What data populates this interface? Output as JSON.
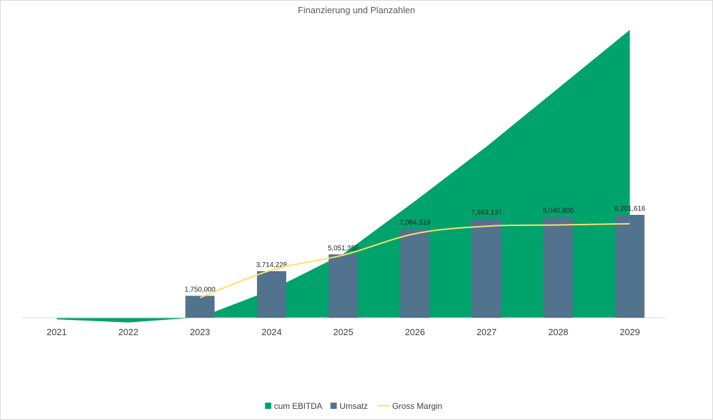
{
  "chart_data": {
    "type": "bar",
    "title": "Finanzierung und Planzahlen",
    "xlabel": "",
    "ylabel": "",
    "categories": [
      "2021",
      "2022",
      "2023",
      "2024",
      "2025",
      "2026",
      "2027",
      "2028",
      "2029"
    ],
    "series": [
      {
        "name": "cum EBITDA",
        "type": "area",
        "values": [
          -200000,
          -600000,
          50000,
          3600000,
          8200000,
          15000000,
          22000000,
          29500000,
          37000000
        ]
      },
      {
        "name": "Umsatz",
        "type": "bar",
        "values": [
          null,
          null,
          1750000,
          3714228,
          5051350,
          7084518,
          7883137,
          8040800,
          8201616
        ],
        "labels": [
          "",
          "",
          "1,750,000",
          "3,714,228",
          "5,051,350",
          "7,084,518",
          "7,883,137",
          "8,040,800",
          "8,201,616"
        ]
      },
      {
        "name": "Gross Margin",
        "type": "line",
        "smooth": true,
        "values": [
          null,
          null,
          1600000,
          3800000,
          5000000,
          6700000,
          7300000,
          7400000,
          7500000
        ]
      }
    ],
    "ylim": [
      -600000,
      38000000
    ],
    "grid": false,
    "legend_position": "bottom",
    "colors": {
      "cum EBITDA": "#00A36C",
      "Umsatz": "#52738E",
      "Gross Margin": "#FFE066",
      "axis": "#D9D9D9",
      "border": "#D9D9D9"
    }
  }
}
